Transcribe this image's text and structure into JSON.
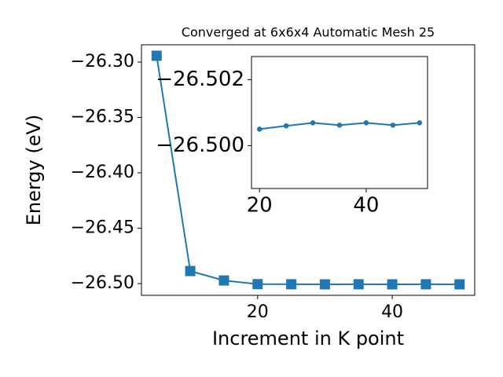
{
  "chart_data": [
    {
      "type": "line",
      "title": "Converged at 6x6x4 Automatic Mesh 25",
      "x_label": "Increment in K point",
      "y_label": "Energy (eV)",
      "series": [
        {
          "color": "#1f77b4",
          "marker": "square",
          "x": [
            5,
            10,
            15,
            20,
            25,
            30,
            35,
            40,
            45,
            50
          ],
          "values": [
            -26.2943,
            -26.4887,
            -26.4972,
            -26.5005,
            -26.5006,
            -26.50069,
            -26.50062,
            -26.50069,
            -26.50062,
            -26.50069
          ]
        }
      ],
      "xlim": [
        2.75,
        52.25
      ],
      "xticks": [
        20,
        40
      ],
      "ylim": [
        -26.5106,
        -26.2844
      ],
      "yticks": [
        {
          "value": -26.5,
          "label": "−26.50"
        },
        {
          "value": -26.45,
          "label": "−26.45"
        },
        {
          "value": -26.4,
          "label": "−26.40"
        },
        {
          "value": -26.35,
          "label": "−26.35"
        },
        {
          "value": -26.3,
          "label": "−26.30"
        }
      ]
    },
    {
      "type": "line",
      "series": [
        {
          "color": "#1f77b4",
          "marker": "circle",
          "x": [
            20,
            25,
            30,
            35,
            40,
            45,
            50
          ],
          "values": [
            -26.5005,
            -26.5006,
            -26.50069,
            -26.50062,
            -26.50069,
            -26.50062,
            -26.50069
          ]
        }
      ],
      "xlim": [
        18.5,
        51.5
      ],
      "xticks": [
        20,
        40
      ],
      "ylim": [
        -26.4987,
        -26.5027
      ],
      "yticks": [
        {
          "value": -26.5,
          "label": "−26.500"
        },
        {
          "value": -26.502,
          "label": "−26.502"
        }
      ]
    }
  ]
}
